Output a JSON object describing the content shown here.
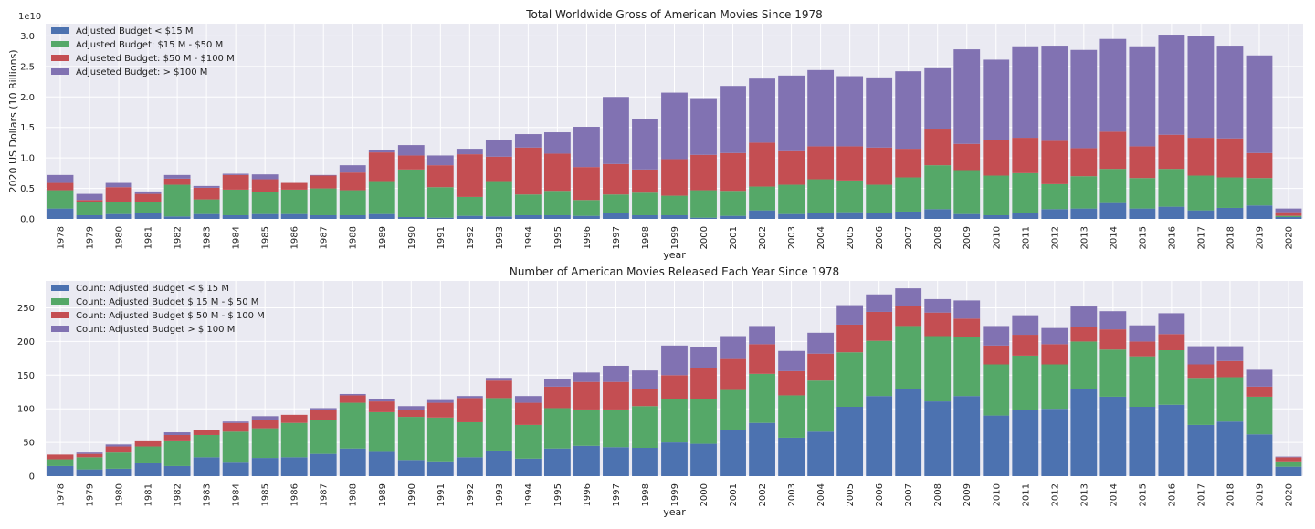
{
  "colors": {
    "background": "#ffffff",
    "plot_bg": "#eaeaf2",
    "grid": "#ffffff",
    "series": [
      "#4c72b0",
      "#55a868",
      "#c44e52",
      "#8172b2"
    ]
  },
  "chart_data": [
    {
      "type": "bar",
      "stacked": true,
      "title": "Total Worldwide Gross of American Movies Since 1978",
      "xlabel": "year",
      "ylabel": "2020 US Dollars (10 Billions)",
      "scale_note": "1e10",
      "ylim": [
        0,
        3.2
      ],
      "yticks": [
        0.0,
        0.5,
        1.0,
        1.5,
        2.0,
        2.5,
        3.0
      ],
      "ytick_labels": [
        "0.0",
        "0.5",
        "1.0",
        "1.5",
        "2.0",
        "2.5",
        "3.0"
      ],
      "legend_position": "top-left",
      "grid": true,
      "categories": [
        "1978",
        "1979",
        "1980",
        "1981",
        "1982",
        "1983",
        "1984",
        "1985",
        "1986",
        "1987",
        "1988",
        "1989",
        "1990",
        "1991",
        "1992",
        "1993",
        "1994",
        "1995",
        "1996",
        "1997",
        "1998",
        "1999",
        "2000",
        "2001",
        "2002",
        "2003",
        "2004",
        "2005",
        "2006",
        "2007",
        "2008",
        "2009",
        "2010",
        "2011",
        "2012",
        "2013",
        "2014",
        "2015",
        "2016",
        "2017",
        "2018",
        "2019",
        "2020"
      ],
      "series": [
        {
          "name": "Adjusted Budget < $15 M",
          "values": [
            0.17,
            0.06,
            0.08,
            0.1,
            0.04,
            0.08,
            0.06,
            0.08,
            0.08,
            0.06,
            0.06,
            0.08,
            0.03,
            0.02,
            0.05,
            0.04,
            0.06,
            0.06,
            0.05,
            0.1,
            0.06,
            0.06,
            0.02,
            0.05,
            0.14,
            0.08,
            0.1,
            0.11,
            0.1,
            0.12,
            0.16,
            0.08,
            0.06,
            0.09,
            0.16,
            0.17,
            0.26,
            0.17,
            0.2,
            0.14,
            0.18,
            0.22,
            0.03
          ]
        },
        {
          "name": "Adjusted Budget: $15 M - $50 M",
          "values": [
            0.3,
            0.22,
            0.2,
            0.18,
            0.52,
            0.24,
            0.42,
            0.36,
            0.4,
            0.44,
            0.41,
            0.54,
            0.78,
            0.5,
            0.31,
            0.58,
            0.34,
            0.4,
            0.26,
            0.3,
            0.37,
            0.32,
            0.45,
            0.41,
            0.39,
            0.48,
            0.55,
            0.52,
            0.46,
            0.56,
            0.72,
            0.72,
            0.65,
            0.66,
            0.41,
            0.53,
            0.56,
            0.5,
            0.62,
            0.57,
            0.5,
            0.45,
            0.02
          ]
        },
        {
          "name": "Adjuseted Budget: $50 M - $100 M",
          "values": [
            0.12,
            0.03,
            0.24,
            0.13,
            0.1,
            0.19,
            0.24,
            0.21,
            0.11,
            0.21,
            0.29,
            0.47,
            0.23,
            0.36,
            0.7,
            0.4,
            0.77,
            0.61,
            0.54,
            0.5,
            0.38,
            0.6,
            0.58,
            0.62,
            0.72,
            0.55,
            0.54,
            0.56,
            0.61,
            0.47,
            0.6,
            0.43,
            0.59,
            0.58,
            0.71,
            0.46,
            0.61,
            0.52,
            0.56,
            0.62,
            0.64,
            0.41,
            0.06
          ]
        },
        {
          "name": "Adjuseted Budget: > $100 M",
          "values": [
            0.13,
            0.1,
            0.07,
            0.04,
            0.06,
            0.03,
            0.02,
            0.08,
            0.0,
            0.01,
            0.12,
            0.04,
            0.17,
            0.16,
            0.09,
            0.28,
            0.22,
            0.35,
            0.66,
            1.1,
            0.82,
            1.09,
            0.93,
            1.1,
            1.05,
            1.24,
            1.25,
            1.15,
            1.15,
            1.27,
            0.99,
            1.55,
            1.31,
            1.5,
            1.56,
            1.61,
            1.52,
            1.64,
            1.64,
            1.67,
            1.52,
            1.6,
            0.06
          ]
        }
      ]
    },
    {
      "type": "bar",
      "stacked": true,
      "title": "Number of American Movies Released Each Year Since 1978",
      "xlabel": "year",
      "ylabel": "",
      "ylim": [
        0,
        290
      ],
      "yticks": [
        0,
        50,
        100,
        150,
        200,
        250
      ],
      "ytick_labels": [
        "0",
        "50",
        "100",
        "150",
        "200",
        "250"
      ],
      "legend_position": "top-left",
      "grid": true,
      "categories": [
        "1978",
        "1979",
        "1980",
        "1981",
        "1982",
        "1983",
        "1984",
        "1985",
        "1986",
        "1987",
        "1988",
        "1989",
        "1990",
        "1991",
        "1992",
        "1993",
        "1994",
        "1995",
        "1996",
        "1997",
        "1998",
        "1999",
        "2000",
        "2001",
        "2002",
        "2003",
        "2004",
        "2005",
        "2006",
        "2007",
        "2008",
        "2009",
        "2010",
        "2011",
        "2012",
        "2013",
        "2014",
        "2015",
        "2016",
        "2017",
        "2018",
        "2019",
        "2020"
      ],
      "series": [
        {
          "name": "Count: Adjusted Budget < $ 15 M",
          "values": [
            15,
            10,
            11,
            19,
            15,
            28,
            20,
            27,
            28,
            33,
            41,
            36,
            24,
            22,
            28,
            38,
            26,
            41,
            45,
            43,
            42,
            50,
            48,
            68,
            79,
            57,
            66,
            103,
            119,
            130,
            111,
            119,
            90,
            98,
            100,
            130,
            118,
            103,
            106,
            76,
            81,
            62,
            14
          ]
        },
        {
          "name": "Count: Adjusted Budget $ 15 M - $ 50 M",
          "values": [
            10,
            18,
            24,
            25,
            38,
            33,
            46,
            44,
            51,
            50,
            68,
            59,
            64,
            65,
            52,
            78,
            50,
            60,
            54,
            56,
            62,
            65,
            66,
            60,
            73,
            63,
            76,
            81,
            82,
            93,
            97,
            88,
            76,
            81,
            66,
            70,
            70,
            75,
            81,
            70,
            66,
            56,
            8
          ]
        },
        {
          "name": "Count: Adjusted Budget $ 50 M - $ 100 M",
          "values": [
            7,
            5,
            9,
            9,
            8,
            8,
            13,
            13,
            12,
            16,
            11,
            16,
            10,
            22,
            36,
            26,
            33,
            32,
            41,
            41,
            25,
            35,
            47,
            46,
            44,
            36,
            40,
            41,
            43,
            30,
            35,
            27,
            28,
            31,
            30,
            22,
            30,
            22,
            24,
            20,
            24,
            15,
            6
          ]
        },
        {
          "name": "Count: Adjusted Budget > $ 100 M",
          "values": [
            0,
            2,
            3,
            0,
            4,
            0,
            2,
            5,
            0,
            2,
            2,
            4,
            6,
            4,
            3,
            4,
            10,
            12,
            14,
            24,
            28,
            44,
            31,
            34,
            27,
            30,
            31,
            29,
            26,
            26,
            20,
            27,
            29,
            29,
            24,
            30,
            27,
            24,
            31,
            27,
            22,
            25,
            1
          ]
        }
      ]
    }
  ]
}
